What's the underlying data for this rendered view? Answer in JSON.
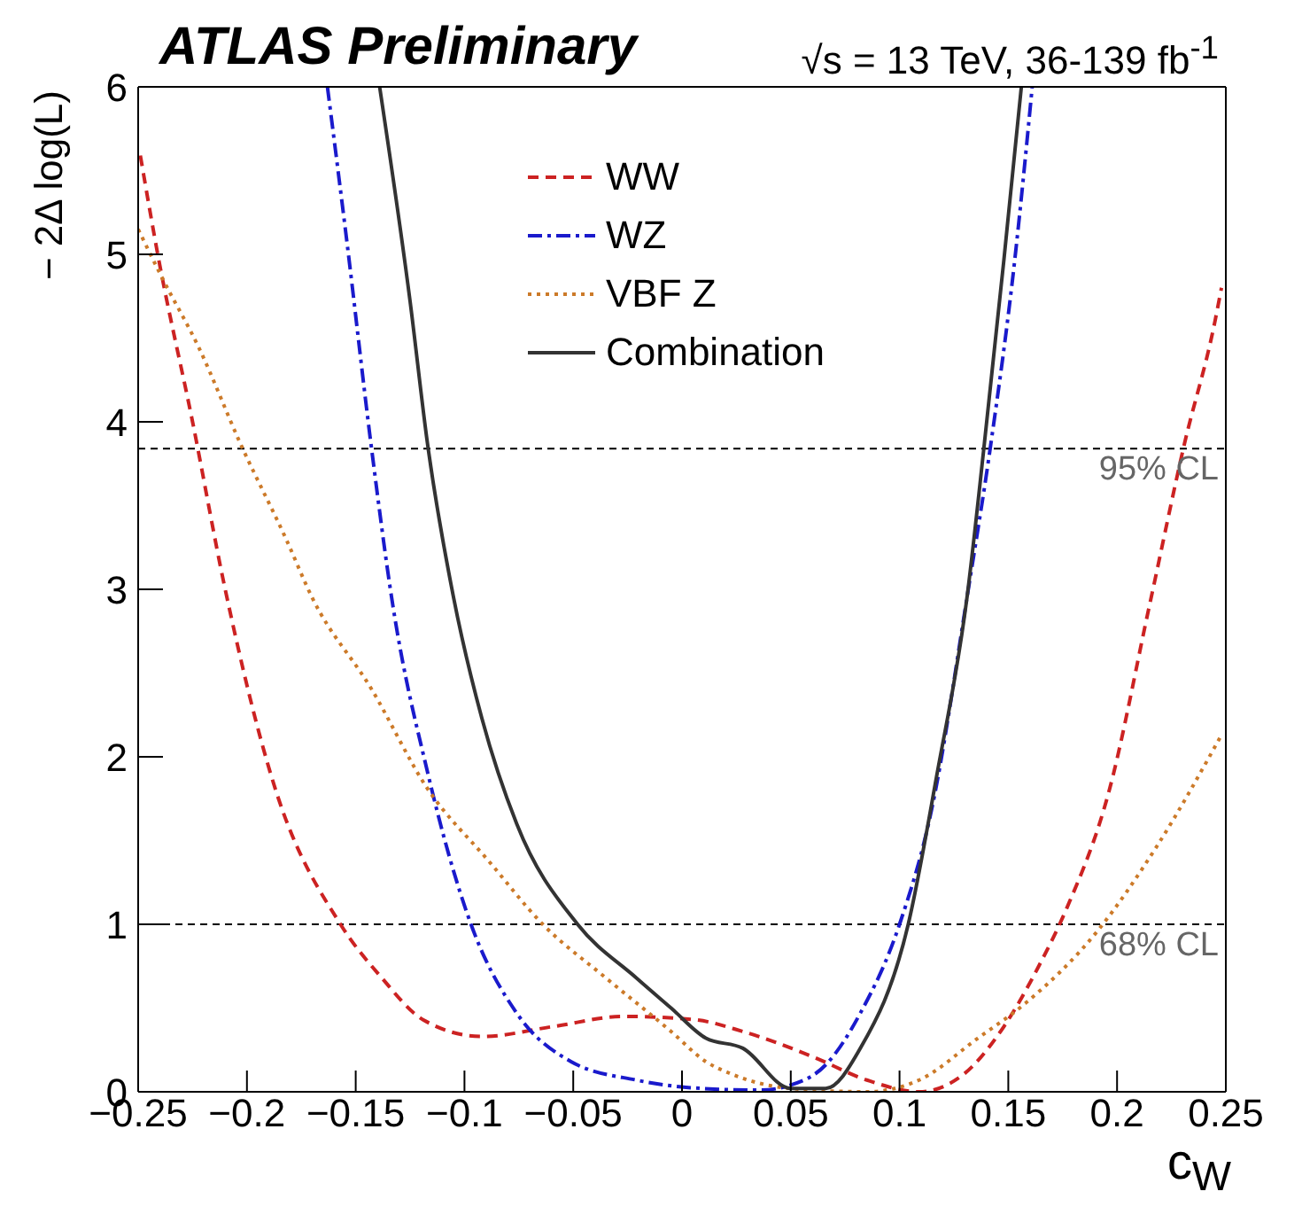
{
  "chart_data": {
    "type": "line",
    "title": "ATLAS Preliminary",
    "subtitle": "√s = 13 TeV, 36-139 fb$^{-1}$",
    "xlabel": "c$_{W}$",
    "ylabel": "− 2Δ log(L)",
    "xlim": [
      -0.25,
      0.25
    ],
    "xticks": [
      {
        "value": -0.25,
        "label": "−0.25"
      },
      {
        "value": -0.2,
        "label": "−0.2"
      },
      {
        "value": -0.15,
        "label": "−0.15"
      },
      {
        "value": -0.1,
        "label": "−0.1"
      },
      {
        "value": -0.05,
        "label": "−0.05"
      },
      0,
      0.05,
      0.1,
      0.15,
      0.2,
      0.25
    ],
    "ylim": [
      0,
      6
    ],
    "yticks": [
      0,
      1,
      2,
      3,
      4,
      5,
      6
    ],
    "legend": "top",
    "marker": "none",
    "ref_lines": [
      {
        "axis": "y",
        "value": 3.84,
        "label": "95% CL",
        "line_style": "dashed",
        "color": "#000000"
      },
      {
        "axis": "y",
        "value": 1,
        "label": "68% CL",
        "line_style": "dashed",
        "color": "#000000"
      }
    ],
    "series": [
      {
        "name": "WW",
        "color": "#cc2222",
        "line_style": "dashed",
        "x": [
          -0.249,
          -0.241,
          -0.225,
          -0.21,
          -0.187,
          -0.157,
          -0.138,
          -0.119,
          -0.092,
          -0.059,
          -0.027,
          0.006,
          0.028,
          0.06,
          0.085,
          0.109,
          0.128,
          0.148,
          0.164,
          0.177,
          0.196,
          0.215,
          0.231,
          0.245,
          0.248
        ],
        "values": [
          5.59,
          5.0,
          4.0,
          3.0,
          1.81,
          1.0,
          0.68,
          0.43,
          0.33,
          0.39,
          0.45,
          0.43,
          0.36,
          0.21,
          0.07,
          0.0,
          0.09,
          0.39,
          0.75,
          1.1,
          1.78,
          2.91,
          3.87,
          4.6,
          4.8
        ]
      },
      {
        "name": "WZ",
        "color": "#1a1acc",
        "line_style": "dashdot",
        "x": [
          -0.163,
          -0.154,
          -0.143,
          -0.133,
          -0.117,
          -0.097,
          -0.076,
          -0.051,
          -0.021,
          0.009,
          0.036,
          0.05,
          0.066,
          0.082,
          0.1,
          0.115,
          0.131,
          0.142,
          0.153,
          0.161
        ],
        "values": [
          6.0,
          5.07,
          3.87,
          2.91,
          1.91,
          1.0,
          0.47,
          0.18,
          0.07,
          0.02,
          0.01,
          0.04,
          0.16,
          0.47,
          1.0,
          1.7,
          2.95,
          3.87,
          4.97,
          6.0
        ]
      },
      {
        "name": "VBF Z",
        "color": "#cc7a29",
        "line_style": "dotted",
        "x": [
          -0.25,
          -0.239,
          -0.222,
          -0.203,
          -0.182,
          -0.17,
          -0.143,
          -0.117,
          -0.089,
          -0.064,
          -0.035,
          -0.005,
          0.011,
          0.022,
          0.05,
          0.085,
          0.109,
          0.136,
          0.158,
          0.191,
          0.218,
          0.248
        ],
        "values": [
          5.15,
          4.86,
          4.44,
          3.87,
          3.3,
          2.95,
          2.41,
          1.81,
          1.38,
          1.0,
          0.68,
          0.36,
          0.18,
          0.11,
          0.02,
          0.0,
          0.07,
          0.32,
          0.53,
          0.96,
          1.46,
          2.13
        ]
      },
      {
        "name": "Combination",
        "color": "#333333",
        "line_style": "solid",
        "x": [
          -0.139,
          -0.125,
          -0.117,
          -0.105,
          -0.092,
          -0.076,
          -0.048,
          -0.021,
          -0.005,
          0.011,
          0.028,
          0.05,
          0.066,
          0.082,
          0.104,
          0.117,
          0.131,
          0.139,
          0.148,
          0.156
        ],
        "values": [
          6.0,
          4.72,
          3.87,
          2.95,
          2.23,
          1.6,
          1.0,
          0.68,
          0.5,
          0.32,
          0.26,
          0.02,
          0.02,
          0.26,
          1.0,
          1.88,
          2.95,
          3.87,
          4.97,
          6.0
        ]
      }
    ]
  }
}
